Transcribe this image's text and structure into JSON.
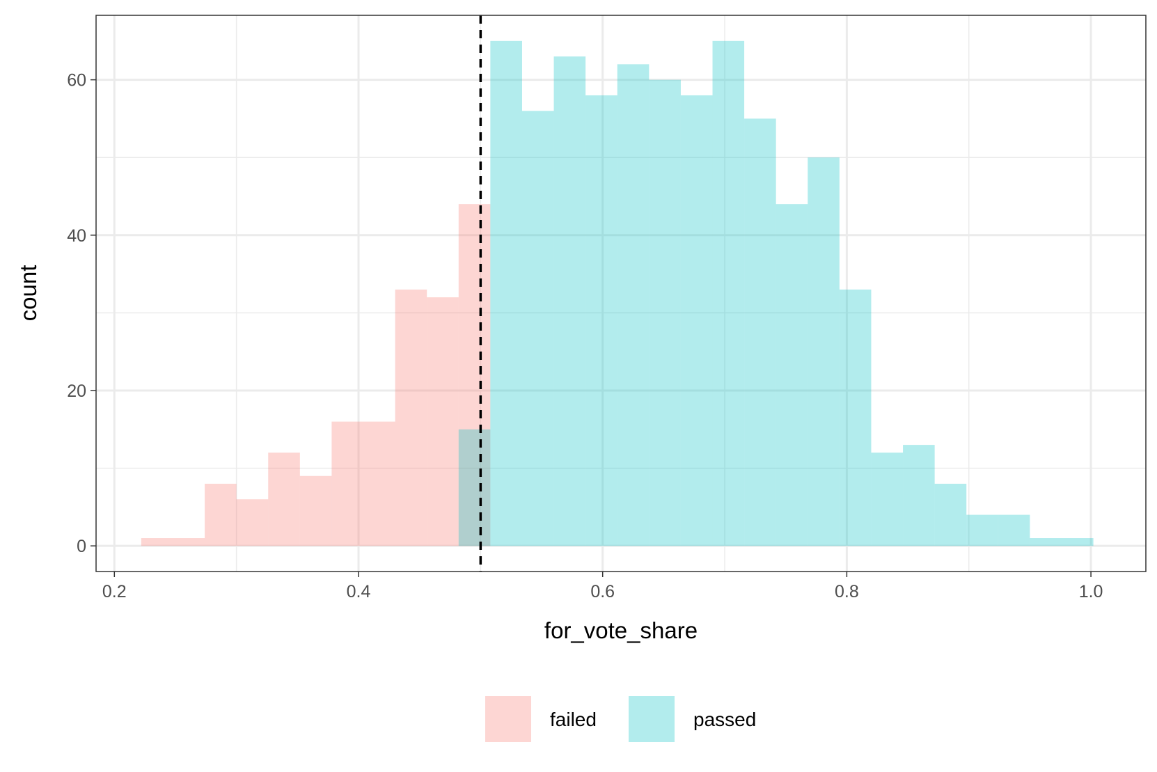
{
  "chart_data": {
    "type": "histogram",
    "xlabel": "for_vote_share",
    "ylabel": "count",
    "xlim": [
      0.185,
      1.045
    ],
    "ylim": [
      -3.3,
      68.3
    ],
    "x_ticks": [
      0.2,
      0.4,
      0.6,
      0.8,
      1.0
    ],
    "x_tick_labels": [
      "0.2",
      "0.4",
      "0.6",
      "0.8",
      "1.0"
    ],
    "y_ticks": [
      0,
      20,
      40,
      60
    ],
    "y_tick_labels": [
      "0",
      "20",
      "40",
      "60"
    ],
    "bin_width": 0.026,
    "grid": true,
    "legend_position": "bottom",
    "reference_line": {
      "x": 0.5,
      "style": "dashed",
      "color": "#000000"
    },
    "series": [
      {
        "name": "failed",
        "color": "#F8766D",
        "bins": [
          {
            "x0": 0.222,
            "x1": 0.248,
            "count": 1
          },
          {
            "x0": 0.248,
            "x1": 0.274,
            "count": 1
          },
          {
            "x0": 0.274,
            "x1": 0.3,
            "count": 8
          },
          {
            "x0": 0.3,
            "x1": 0.326,
            "count": 6
          },
          {
            "x0": 0.326,
            "x1": 0.352,
            "count": 12
          },
          {
            "x0": 0.352,
            "x1": 0.378,
            "count": 9
          },
          {
            "x0": 0.378,
            "x1": 0.404,
            "count": 16
          },
          {
            "x0": 0.404,
            "x1": 0.43,
            "count": 16
          },
          {
            "x0": 0.43,
            "x1": 0.456,
            "count": 33
          },
          {
            "x0": 0.456,
            "x1": 0.482,
            "count": 32
          },
          {
            "x0": 0.482,
            "x1": 0.508,
            "count": 44
          }
        ]
      },
      {
        "name": "passed",
        "color": "#00BFC4",
        "bins": [
          {
            "x0": 0.482,
            "x1": 0.508,
            "count": 15
          },
          {
            "x0": 0.508,
            "x1": 0.534,
            "count": 65
          },
          {
            "x0": 0.534,
            "x1": 0.56,
            "count": 56
          },
          {
            "x0": 0.56,
            "x1": 0.586,
            "count": 63
          },
          {
            "x0": 0.586,
            "x1": 0.612,
            "count": 58
          },
          {
            "x0": 0.612,
            "x1": 0.638,
            "count": 62
          },
          {
            "x0": 0.638,
            "x1": 0.664,
            "count": 60
          },
          {
            "x0": 0.664,
            "x1": 0.69,
            "count": 58
          },
          {
            "x0": 0.69,
            "x1": 0.716,
            "count": 65
          },
          {
            "x0": 0.716,
            "x1": 0.742,
            "count": 55
          },
          {
            "x0": 0.742,
            "x1": 0.768,
            "count": 44
          },
          {
            "x0": 0.768,
            "x1": 0.794,
            "count": 50
          },
          {
            "x0": 0.794,
            "x1": 0.82,
            "count": 33
          },
          {
            "x0": 0.82,
            "x1": 0.846,
            "count": 12
          },
          {
            "x0": 0.846,
            "x1": 0.872,
            "count": 13
          },
          {
            "x0": 0.872,
            "x1": 0.898,
            "count": 8
          },
          {
            "x0": 0.898,
            "x1": 0.924,
            "count": 4
          },
          {
            "x0": 0.924,
            "x1": 0.95,
            "count": 4
          },
          {
            "x0": 0.95,
            "x1": 0.976,
            "count": 1
          },
          {
            "x0": 0.976,
            "x1": 1.002,
            "count": 1
          }
        ]
      }
    ]
  }
}
